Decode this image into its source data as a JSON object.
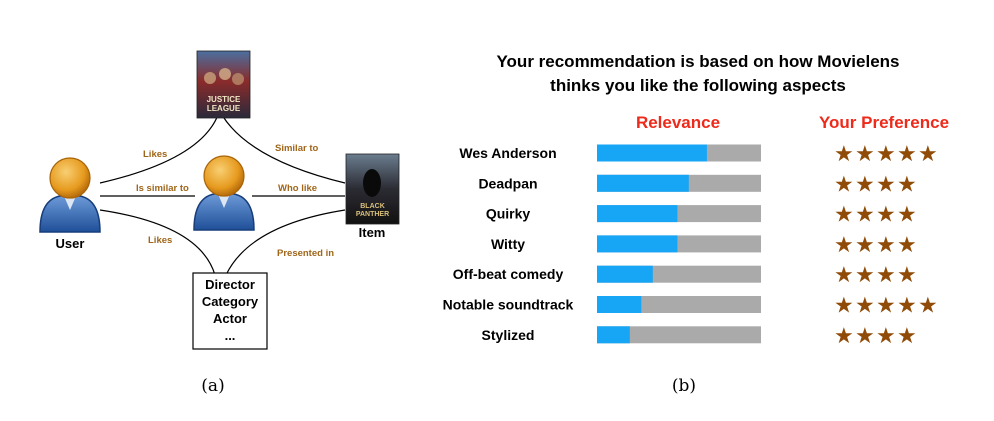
{
  "panel_a": {
    "caption": "(a)",
    "user_label": "User",
    "item_label": "Item",
    "poster_top": {
      "line1": "JUSTICE",
      "line2": "LEAGUE"
    },
    "poster_item": {
      "line1": "BLACK",
      "line2": "PANTHER"
    },
    "edges": {
      "likes_top": "Likes",
      "is_similar_to": "Is similar to",
      "likes_bottom": "Likes",
      "similar_to": "Similar to",
      "who_like": "Who like",
      "presented_in": "Presented in"
    },
    "attributes": [
      "Director",
      "Category",
      "Actor",
      "..."
    ]
  },
  "panel_b": {
    "caption": "(b)",
    "title_line1": "Your recommendation is based on how Movielens",
    "title_line2": "thinks you like the following aspects",
    "relevance_header": "Relevance",
    "preference_header": "Your Preference",
    "header_color": "#ee2a1b",
    "bar_fill_color": "#17a6f5",
    "bar_track_color": "#aaaaaa",
    "star_color": "#8f4b07",
    "star_glyph": "★",
    "aspects": [
      {
        "label": "Wes Anderson",
        "relevance": 0.67,
        "stars": 5
      },
      {
        "label": "Deadpan",
        "relevance": 0.56,
        "stars": 4
      },
      {
        "label": "Quirky",
        "relevance": 0.49,
        "stars": 4
      },
      {
        "label": "Witty",
        "relevance": 0.49,
        "stars": 4
      },
      {
        "label": "Off-beat comedy",
        "relevance": 0.34,
        "stars": 4
      },
      {
        "label": "Notable soundtrack",
        "relevance": 0.27,
        "stars": 5
      },
      {
        "label": "Stylized",
        "relevance": 0.2,
        "stars": 4
      }
    ]
  }
}
